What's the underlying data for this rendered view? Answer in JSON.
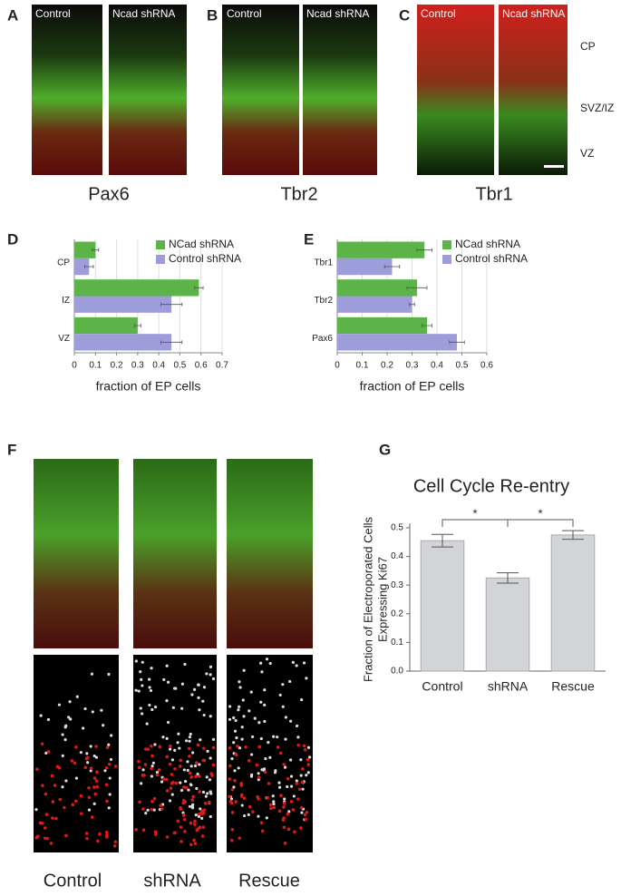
{
  "panels": {
    "A": {
      "letter": "A",
      "left": "Control",
      "right": "Ncad shRNA",
      "caption": "Pax6"
    },
    "B": {
      "letter": "B",
      "left": "Control",
      "right": "Ncad shRNA",
      "caption": "Tbr2"
    },
    "C": {
      "letter": "C",
      "left": "Control",
      "right": "Ncad shRNA",
      "caption": "Tbr1",
      "layers": [
        "CP",
        "SVZ/IZ",
        "VZ"
      ]
    },
    "D": {
      "letter": "D"
    },
    "E": {
      "letter": "E"
    },
    "F": {
      "letter": "F",
      "captions": [
        "Control",
        "shRNA",
        "Rescue"
      ]
    },
    "G": {
      "letter": "G"
    }
  },
  "chart_data": [
    {
      "type": "hbar",
      "categories": [
        "CP",
        "IZ",
        "VZ"
      ],
      "series": [
        {
          "name": "NCad shRNA",
          "color": "#5cb347",
          "values": [
            0.1,
            0.59,
            0.3
          ],
          "errors": [
            0.015,
            0.02,
            0.015
          ]
        },
        {
          "name": "Control shRNA",
          "color": "#9d9ddc",
          "values": [
            0.07,
            0.46,
            0.46
          ],
          "errors": [
            0.02,
            0.05,
            0.05
          ]
        }
      ],
      "xlim": [
        0,
        0.7
      ],
      "xticks": [
        0,
        0.1,
        0.2,
        0.3,
        0.4,
        0.5,
        0.6,
        0.7
      ],
      "xlabel": "fraction of EP cells",
      "grid": true
    },
    {
      "type": "hbar",
      "categories": [
        "Tbr1",
        "Tbr2",
        "Pax6"
      ],
      "series": [
        {
          "name": "NCad shRNA",
          "color": "#5cb347",
          "values": [
            0.35,
            0.32,
            0.36
          ],
          "errors": [
            0.03,
            0.04,
            0.02
          ]
        },
        {
          "name": "Control shRNA",
          "color": "#9d9ddc",
          "values": [
            0.22,
            0.3,
            0.48
          ],
          "errors": [
            0.03,
            0.01,
            0.03
          ]
        }
      ],
      "xlim": [
        0,
        0.6
      ],
      "xticks": [
        0,
        0.1,
        0.2,
        0.3,
        0.4,
        0.5,
        0.6
      ],
      "xlabel": "fraction of EP cells",
      "grid": true
    },
    {
      "type": "bar",
      "title": "Cell Cycle Re-entry",
      "ylabel": [
        "Fraction of Electroporated Cells",
        "Expressing Ki67"
      ],
      "categories": [
        "Control",
        "shRNA",
        "Rescue"
      ],
      "values": [
        0.455,
        0.325,
        0.475
      ],
      "errors": [
        0.022,
        0.018,
        0.015
      ],
      "color": "#d3d4d8",
      "ylim": [
        0,
        0.5
      ],
      "yticks": [
        {
          "value": 0,
          "label": "0.0"
        },
        0.1,
        0.2,
        0.3,
        0.4,
        0.5
      ],
      "annotations": [
        "*",
        "*"
      ]
    }
  ]
}
